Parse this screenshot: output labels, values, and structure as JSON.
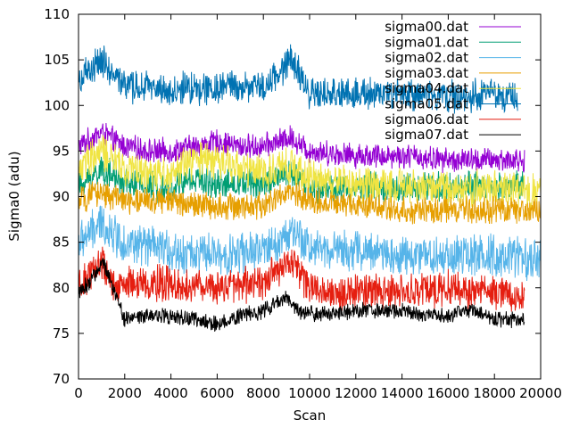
{
  "chart_data": {
    "type": "line",
    "title": "",
    "xlabel": "Scan",
    "ylabel": "Sigma0 (adu)",
    "xlim": [
      0,
      20000
    ],
    "ylim": [
      70,
      110
    ],
    "xticks": [
      0,
      2000,
      4000,
      6000,
      8000,
      10000,
      12000,
      14000,
      16000,
      18000,
      20000
    ],
    "yticks": [
      70,
      75,
      80,
      85,
      90,
      95,
      100,
      105,
      110
    ],
    "grid": false,
    "legend_position": "top-right",
    "series": [
      {
        "name": "sigma00.dat",
        "color": "#9400d3",
        "x_end": 19300,
        "x": [
          0,
          1000,
          2000,
          3000,
          4000,
          5000,
          6000,
          7000,
          8000,
          9200,
          10000,
          12000,
          14000,
          16000,
          17000,
          18000,
          19300
        ],
        "y": [
          95.5,
          97,
          95.5,
          95,
          95,
          95.5,
          96,
          95.5,
          95.5,
          96.5,
          95,
          94.5,
          94.5,
          94,
          94,
          94,
          94
        ],
        "amplitude": 1.2
      },
      {
        "name": "sigma01.dat",
        "color": "#009e73",
        "x_end": 19300,
        "x": [
          0,
          1000,
          2000,
          4000,
          5000,
          6000,
          8000,
          9200,
          10000,
          12000,
          14000,
          16000,
          18000,
          19300
        ],
        "y": [
          91,
          93,
          91.5,
          91,
          92,
          91.5,
          91.5,
          92.5,
          91,
          91,
          91,
          91,
          91,
          91.5
        ],
        "amplitude": 1.5
      },
      {
        "name": "sigma02.dat",
        "color": "#56b4e9",
        "x_end": 20000,
        "x": [
          0,
          1000,
          2000,
          4000,
          6000,
          8000,
          9200,
          10000,
          12000,
          14000,
          16000,
          18000,
          20000
        ],
        "y": [
          85,
          87,
          85,
          84,
          83.5,
          84,
          86,
          84.5,
          84,
          83.5,
          83.5,
          83.5,
          83
        ],
        "amplitude": 2.0
      },
      {
        "name": "sigma03.dat",
        "color": "#e69f00",
        "x_end": 20000,
        "x": [
          0,
          1000,
          2000,
          4000,
          6000,
          8000,
          9200,
          10000,
          12000,
          14000,
          16000,
          18000,
          20000
        ],
        "y": [
          89.5,
          90.5,
          89.5,
          89.5,
          89,
          89,
          90.5,
          89.5,
          89,
          88.5,
          88.5,
          88.5,
          88.5
        ],
        "amplitude": 1.3
      },
      {
        "name": "sigma04.dat",
        "color": "#f0e442",
        "x_end": 20000,
        "x": [
          0,
          1000,
          2000,
          4000,
          5000,
          6000,
          8000,
          9200,
          10000,
          12000,
          14000,
          16000,
          18000,
          20000
        ],
        "y": [
          93,
          95,
          93,
          92.5,
          94,
          94,
          92.5,
          93.5,
          92,
          91.5,
          91,
          91,
          91,
          90.5
        ],
        "amplitude": 1.8
      },
      {
        "name": "sigma05.dat",
        "color": "#0072b2",
        "x_end": 19000,
        "x": [
          0,
          1000,
          2000,
          3000,
          4000,
          5000,
          6000,
          7000,
          8000,
          9200,
          10000,
          11000,
          12000,
          14000,
          16000,
          18000,
          19000
        ],
        "y": [
          102.5,
          105,
          102,
          102,
          101.5,
          102,
          102,
          102,
          102,
          105,
          101.5,
          101,
          101.5,
          101,
          101,
          101,
          101
        ],
        "amplitude": 1.6
      },
      {
        "name": "sigma06.dat",
        "color": "#e51e10",
        "x_end": 19300,
        "x": [
          0,
          1000,
          1500,
          2000,
          4000,
          6000,
          8000,
          9200,
          10000,
          12000,
          14000,
          16000,
          18000,
          19300
        ],
        "y": [
          80,
          83,
          80,
          80.5,
          80.5,
          80,
          80.5,
          83,
          80,
          79.5,
          79.5,
          80,
          79.5,
          79
        ],
        "amplitude": 1.7
      },
      {
        "name": "sigma07.dat",
        "color": "#000000",
        "x_end": 19300,
        "x": [
          0,
          500,
          1000,
          1500,
          2000,
          3000,
          4000,
          5000,
          6000,
          7000,
          8000,
          9000,
          9500,
          10000,
          12000,
          13000,
          14000,
          15000,
          16000,
          17000,
          18000,
          19300
        ],
        "y": [
          79.5,
          80.5,
          83,
          80,
          76.5,
          77,
          77,
          76.5,
          76,
          77,
          77.5,
          79,
          77.5,
          77,
          77.5,
          77.5,
          77.5,
          77,
          77,
          77.5,
          76.5,
          76.5
        ],
        "amplitude": 0.8
      }
    ]
  }
}
